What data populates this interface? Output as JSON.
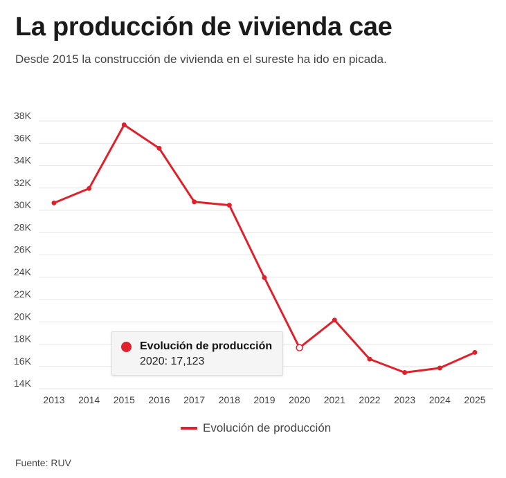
{
  "header": {
    "title": "La producción de vivienda cae",
    "subtitle": "Desde 2015 la construcción de vivienda en el sureste ha ido en picada."
  },
  "chart_data": {
    "type": "line",
    "title": "La producción de vivienda cae",
    "subtitle": "Desde 2015 la construcción de vivienda en el sureste ha ido en picada.",
    "xlabel": "",
    "ylabel": "",
    "categories": [
      "2013",
      "2014",
      "2015",
      "2016",
      "2017",
      "2018",
      "2019",
      "2020",
      "2021",
      "2022",
      "2023",
      "2024",
      "2025"
    ],
    "series": [
      {
        "name": "Evolución de producción",
        "color": "#e0202a",
        "values": [
          30100,
          31400,
          37100,
          35000,
          30200,
          29900,
          23400,
          17123,
          19600,
          16100,
          14900,
          15300,
          16700
        ]
      }
    ],
    "ylim": [
      13000,
      39000
    ],
    "yticks": [
      14000,
      16000,
      18000,
      20000,
      22000,
      24000,
      26000,
      28000,
      30000,
      32000,
      34000,
      36000,
      38000
    ],
    "ytick_labels": [
      "14K",
      "16K",
      "18K",
      "20K",
      "22K",
      "24K",
      "26K",
      "28K",
      "30K",
      "32K",
      "34K",
      "36K",
      "38K"
    ],
    "grid": true,
    "legend": "bottom-center",
    "highlight_index": 7
  },
  "tooltip": {
    "series": "Evolución de producción",
    "value": "2020: 17,123"
  },
  "legend": {
    "label": "Evolución de producción"
  },
  "footer": {
    "source": "Fuente: RUV"
  }
}
